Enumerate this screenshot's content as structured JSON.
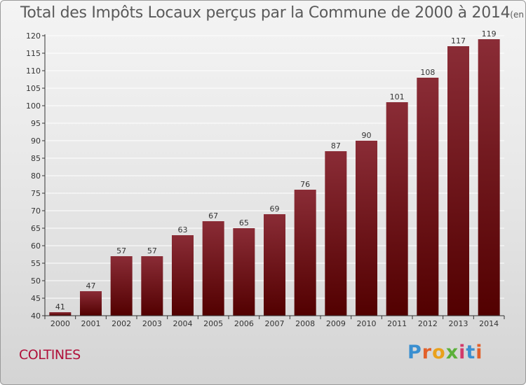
{
  "title": {
    "main": "Total des Impôts Locaux perçus par la Commune de 2000 à 2014",
    "unit": "(en milliers d'€)"
  },
  "commune": "COLTINES",
  "logo": {
    "letters": [
      {
        "ch": "P",
        "color": "#3a8fd0"
      },
      {
        "ch": "r",
        "color": "#e2602a"
      },
      {
        "ch": "o",
        "color": "#e9a11c"
      },
      {
        "ch": "x",
        "color": "#5bb03a"
      },
      {
        "ch": "i",
        "color": "#d23a6a"
      },
      {
        "ch": "t",
        "color": "#3a8fd0"
      },
      {
        "ch": "i",
        "color": "#e2602a"
      }
    ]
  },
  "colors": {
    "bar_top": "#8a2c36",
    "bar_bottom": "#520000",
    "axis": "#333333",
    "grid": "#ffffff"
  },
  "chart_data": {
    "type": "bar",
    "categories": [
      "2000",
      "2001",
      "2002",
      "2003",
      "2004",
      "2005",
      "2006",
      "2007",
      "2008",
      "2009",
      "2010",
      "2011",
      "2012",
      "2013",
      "2014"
    ],
    "values": [
      41,
      47,
      57,
      57,
      63,
      67,
      65,
      69,
      76,
      87,
      90,
      101,
      108,
      117,
      119
    ],
    "ylim": [
      40,
      120
    ],
    "yticks": [
      40,
      45,
      50,
      55,
      60,
      65,
      70,
      75,
      80,
      85,
      90,
      95,
      100,
      105,
      110,
      115,
      120
    ],
    "grid": true,
    "xlabel": "",
    "ylabel": ""
  }
}
